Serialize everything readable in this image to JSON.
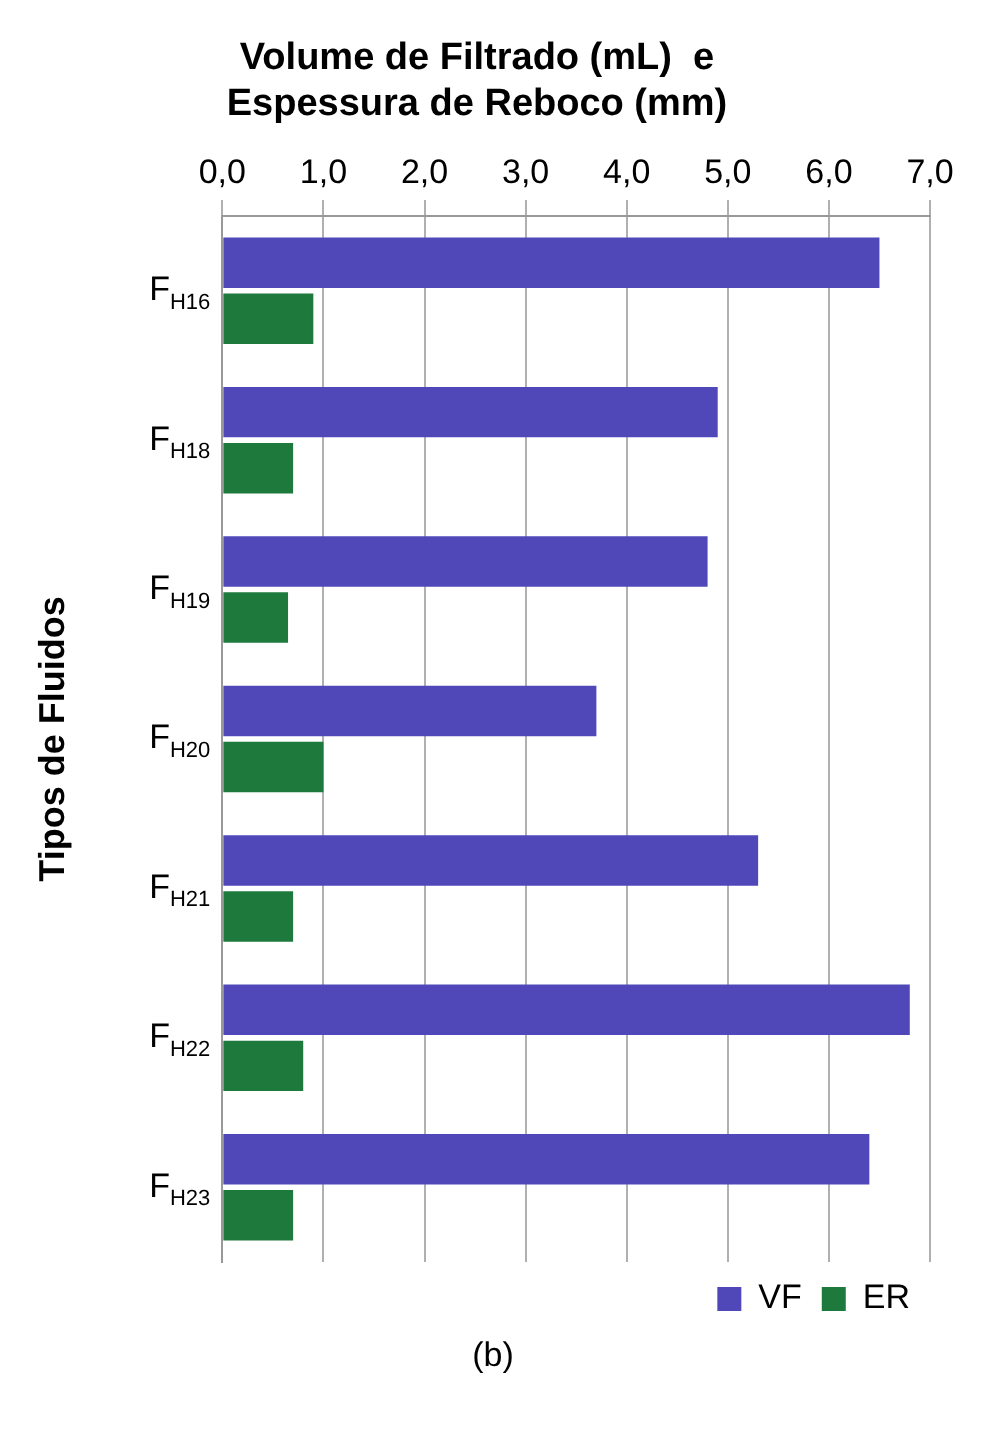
{
  "chart_data": {
    "type": "bar",
    "orientation": "horizontal",
    "title": [
      "Volume de Filtrado (mL)  e",
      "Espessura de Reboco (mm)"
    ],
    "ylabel": "Tipos de Fluidos",
    "annotations": [
      "(b)"
    ],
    "categories": [
      "F$_{H16}$",
      "F$_{H18}$",
      "F$_{H19}$",
      "F$_{H20}$",
      "F$_{H21}$",
      "F$_{H22}$",
      "F$_{H23}$"
    ],
    "series": [
      {
        "name": "VF",
        "color": "#5048b8",
        "values": [
          6.5,
          4.9,
          4.8,
          3.7,
          5.3,
          6.8,
          6.4
        ]
      },
      {
        "name": "ER",
        "color": "#1e7a3c",
        "values": [
          0.9,
          0.7,
          0.65,
          1.0,
          0.7,
          0.8,
          0.7
        ]
      }
    ],
    "xlim": [
      0,
      7
    ],
    "xticks": [
      {
        "value": 0,
        "label": "0,0"
      },
      {
        "value": 1,
        "label": "1,0"
      },
      {
        "value": 2,
        "label": "2,0"
      },
      {
        "value": 3,
        "label": "3,0"
      },
      {
        "value": 4,
        "label": "4,0"
      },
      {
        "value": 5,
        "label": "5,0"
      },
      {
        "value": 6,
        "label": "6,0"
      },
      {
        "value": 7,
        "label": "7,0"
      }
    ],
    "grid": "x",
    "legend": "bottom right"
  }
}
